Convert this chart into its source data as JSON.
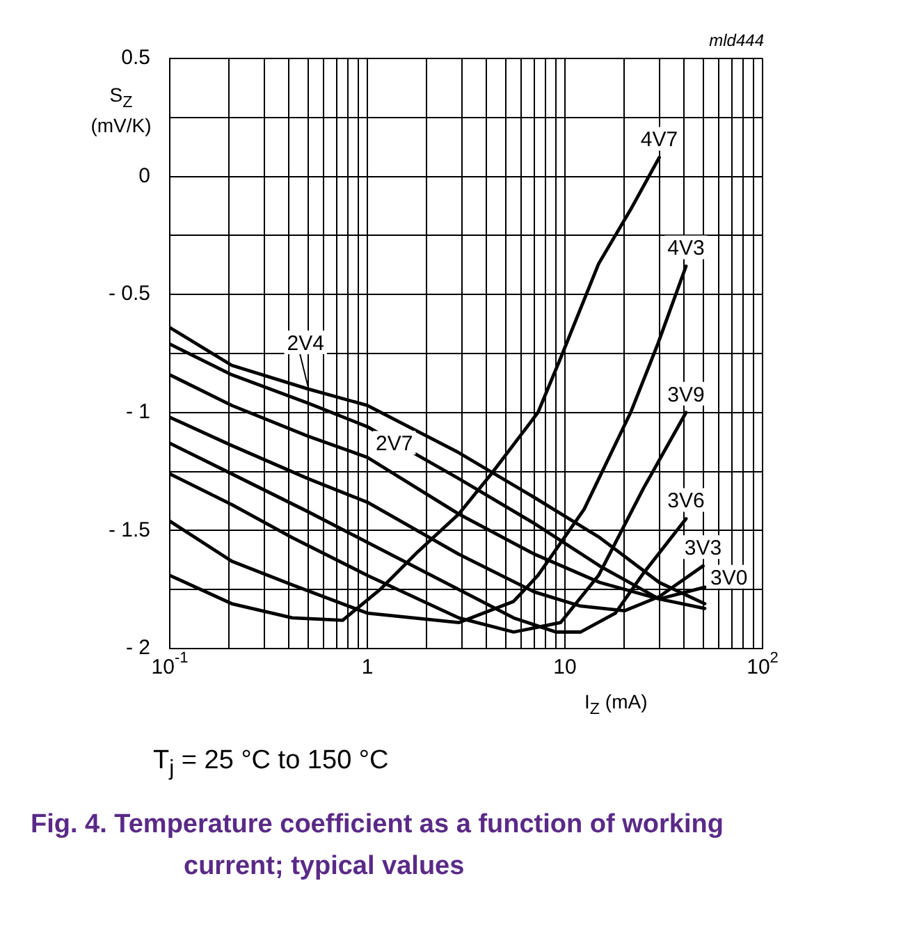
{
  "chart_data": {
    "type": "line",
    "title": "Fig. 4. Temperature coefficient as a function of working current; typical values",
    "xlabel": "I$_{Z}$ (mA)",
    "ylabel": "S$_{Z}$ (mV/K)",
    "annotations": [
      "mld444",
      "T$_{j}$ = 25 °C to 150 °C"
    ],
    "log": "x",
    "grid": true,
    "legend": false,
    "marker": "none",
    "line_style": "solid",
    "xlim": [
      0.1,
      100
    ],
    "ylim": [
      -2,
      0.5
    ],
    "xticks": [
      {
        "value": 0.1,
        "label": "10$^{-1}$"
      },
      {
        "value": 0.2,
        "label": null
      },
      {
        "value": 0.3,
        "label": null
      },
      {
        "value": 0.4,
        "label": null
      },
      {
        "value": 0.5,
        "label": null
      },
      {
        "value": 0.6,
        "label": null
      },
      {
        "value": 0.7,
        "label": null
      },
      {
        "value": 0.8,
        "label": null
      },
      {
        "value": 0.9,
        "label": null
      },
      1,
      {
        "value": 2,
        "label": null
      },
      {
        "value": 3,
        "label": null
      },
      {
        "value": 4,
        "label": null
      },
      {
        "value": 5,
        "label": null
      },
      {
        "value": 6,
        "label": null
      },
      {
        "value": 7,
        "label": null
      },
      {
        "value": 8,
        "label": null
      },
      {
        "value": 9,
        "label": null
      },
      10,
      {
        "value": 20,
        "label": null
      },
      {
        "value": 30,
        "label": null
      },
      {
        "value": 40,
        "label": null
      },
      {
        "value": 50,
        "label": null
      },
      {
        "value": 60,
        "label": null
      },
      {
        "value": 70,
        "label": null
      },
      {
        "value": 80,
        "label": null
      },
      {
        "value": 90,
        "label": null
      },
      {
        "value": 100,
        "label": "10$^{2}$"
      }
    ],
    "yticks": [
      {
        "value": -2,
        "label": "- 2"
      },
      {
        "value": -1.75,
        "label": null
      },
      {
        "value": -1.5,
        "label": "- 1.5"
      },
      {
        "value": -1.25,
        "label": null
      },
      {
        "value": -1,
        "label": "- 1"
      },
      {
        "value": -0.75,
        "label": null
      },
      {
        "value": -0.5,
        "label": "- 0.5"
      },
      {
        "value": -0.25,
        "label": null
      },
      0,
      {
        "value": 0.25,
        "label": null
      },
      0.5
    ],
    "series": [
      {
        "name": "2V4",
        "color": "#000000",
        "x": [
          0.1,
          0.206,
          0.5,
          1,
          2.9,
          7,
          15,
          30,
          51
        ],
        "values": [
          -0.64,
          -0.8,
          -0.9,
          -0.97,
          -1.17,
          -1.36,
          -1.53,
          -1.72,
          -1.81
        ]
      },
      {
        "name": "2V7",
        "color": "#000000",
        "x": [
          0.1,
          0.206,
          0.5,
          1,
          2.9,
          7,
          15,
          30,
          51
        ],
        "values": [
          -0.71,
          -0.84,
          -0.96,
          -1.06,
          -1.28,
          -1.47,
          -1.65,
          -1.79,
          -1.83
        ]
      },
      {
        "name": "3V0",
        "color": "#000000",
        "x": [
          0.1,
          0.206,
          0.5,
          1,
          2.9,
          7,
          15,
          30,
          51
        ],
        "values": [
          -0.84,
          -0.97,
          -1.1,
          -1.19,
          -1.43,
          -1.6,
          -1.72,
          -1.79,
          -1.74
        ]
      },
      {
        "name": "3V3",
        "color": "#000000",
        "x": [
          0.1,
          0.206,
          0.5,
          1,
          2.9,
          7,
          12,
          20,
          30,
          50
        ],
        "values": [
          -1.02,
          -1.14,
          -1.28,
          -1.38,
          -1.6,
          -1.76,
          -1.82,
          -1.84,
          -1.78,
          -1.65
        ]
      },
      {
        "name": "3V6",
        "color": "#000000",
        "x": [
          0.1,
          0.206,
          0.5,
          1,
          2.9,
          5.5,
          9,
          12,
          18,
          25,
          41
        ],
        "values": [
          -1.13,
          -1.26,
          -1.42,
          -1.55,
          -1.75,
          -1.87,
          -1.93,
          -1.93,
          -1.85,
          -1.68,
          -1.45
        ]
      },
      {
        "name": "3V9",
        "color": "#000000",
        "x": [
          0.1,
          0.206,
          0.417,
          1,
          2.9,
          5.5,
          9.5,
          14.8,
          25,
          41
        ],
        "values": [
          -1.26,
          -1.39,
          -1.53,
          -1.69,
          -1.87,
          -1.93,
          -1.89,
          -1.69,
          -1.32,
          -1.0
        ]
      },
      {
        "name": "4V3",
        "color": "#000000",
        "x": [
          0.1,
          0.206,
          0.417,
          1,
          2.9,
          5.5,
          7.3,
          12.5,
          21.5,
          29.5,
          41
        ],
        "values": [
          -1.46,
          -1.63,
          -1.73,
          -1.85,
          -1.89,
          -1.8,
          -1.69,
          -1.41,
          -1.0,
          -0.71,
          -0.38
        ]
      },
      {
        "name": "4V7",
        "color": "#000000",
        "x": [
          0.1,
          0.206,
          0.417,
          0.75,
          1.16,
          1.8,
          2.9,
          4.24,
          7.3,
          9.5,
          14.8,
          21.5,
          30
        ],
        "values": [
          -1.69,
          -1.81,
          -1.87,
          -1.88,
          -1.75,
          -1.59,
          -1.43,
          -1.26,
          -1.0,
          -0.77,
          -0.37,
          -0.14,
          0.08
        ]
      }
    ]
  }
}
